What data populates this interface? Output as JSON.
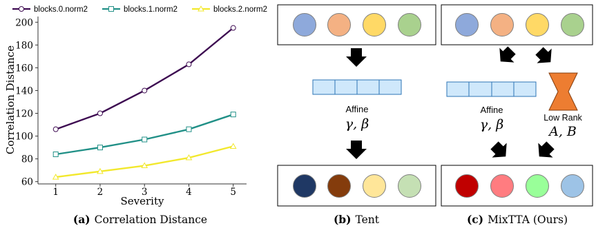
{
  "chart_data": {
    "type": "line",
    "x": [
      1,
      2,
      3,
      4,
      5
    ],
    "series": [
      {
        "name": "blocks.0.norm2",
        "values": [
          106,
          120,
          140,
          163,
          195
        ],
        "color": "#3d0a51",
        "marker": "circle"
      },
      {
        "name": "blocks.1.norm2",
        "values": [
          84,
          90,
          97,
          106,
          119
        ],
        "color": "#219087",
        "marker": "square"
      },
      {
        "name": "blocks.2.norm2",
        "values": [
          64,
          69,
          74,
          81,
          91
        ],
        "color": "#f2e82c",
        "marker": "triangle"
      }
    ],
    "xlabel": "Severity",
    "ylabel": "Correlation Distance",
    "xlim": [
      0.6,
      5.3
    ],
    "ylim": [
      58,
      205
    ],
    "xticks": [
      "1",
      "2",
      "3",
      "4",
      "5"
    ],
    "yticks": [
      "60",
      "80",
      "100",
      "120",
      "140",
      "160",
      "180",
      "200"
    ],
    "grid": false,
    "legend": "top"
  },
  "captions": {
    "a": {
      "label": "(a)",
      "text": "Correlation Distance"
    },
    "b": {
      "label": "(b)",
      "text": "Tent"
    },
    "c": {
      "label": "(c)",
      "text": "MixTTA (Ours)"
    }
  },
  "tent": {
    "affine_label": "Affine",
    "affine_params": "γ, β",
    "input_colors": [
      "#8ea9db",
      "#f4b183",
      "#ffd966",
      "#a9d18e"
    ],
    "output_colors": [
      "#1f3864",
      "#843c0c",
      "#ffe699",
      "#c5e0b4"
    ]
  },
  "mixtta": {
    "affine_label": "Affine",
    "affine_params": "γ, β",
    "lowrank_label": "Low Rank",
    "lowrank_params": "A, B",
    "input_colors": [
      "#8ea9db",
      "#f4b183",
      "#ffd966",
      "#a9d18e"
    ],
    "output_colors": [
      "#c00000",
      "#ff7c80",
      "#99ff99",
      "#9dc3e6"
    ]
  },
  "colors": {
    "affine_fill": "#cfe8fb",
    "affine_stroke": "#2e75b6",
    "lowrank_fill": "#ed7d31",
    "arrow": "#000000"
  }
}
